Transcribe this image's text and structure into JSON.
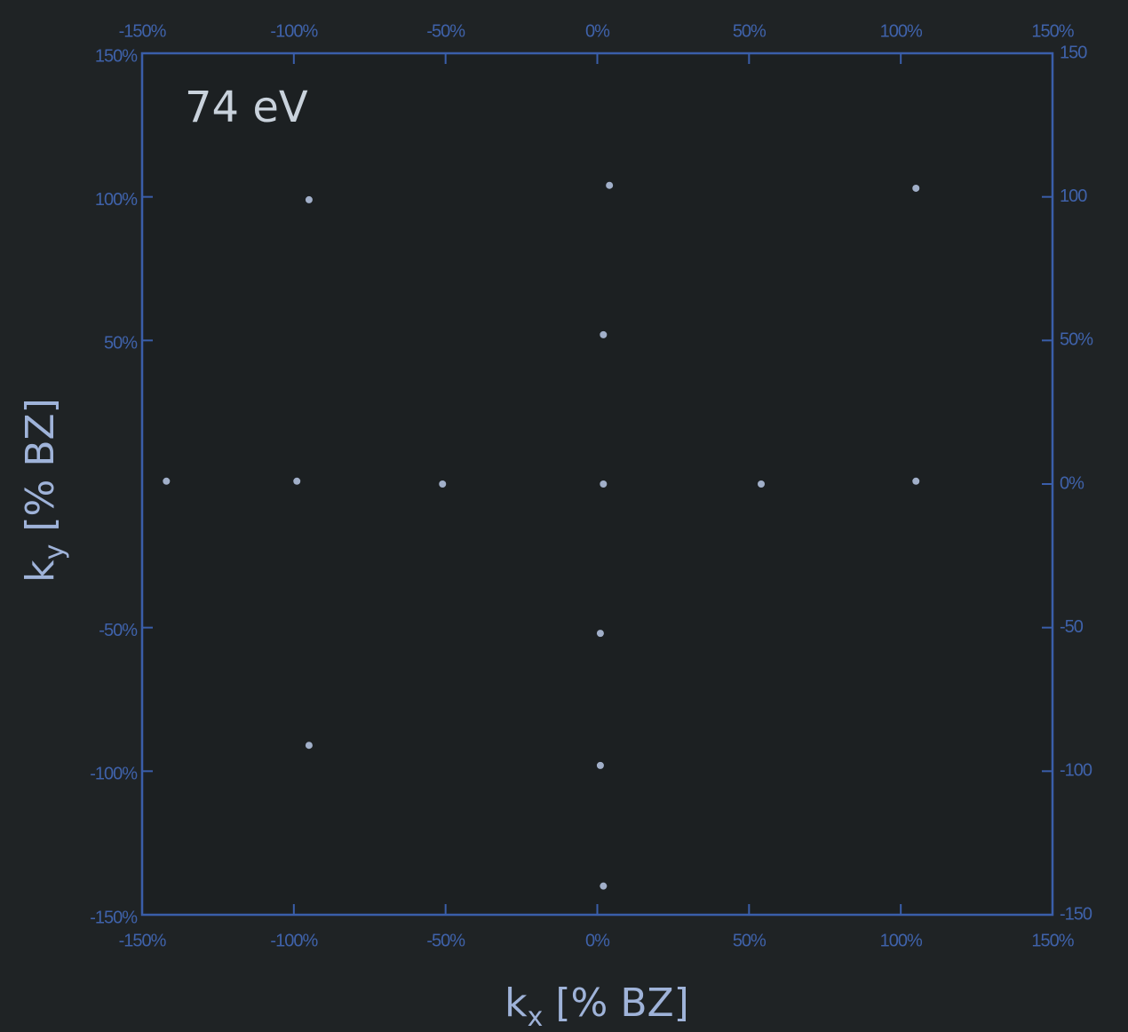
{
  "chart_data": {
    "type": "scatter",
    "annotation": "74 eV",
    "x_label": {
      "symbol": "k",
      "subscript": "x",
      "unit": "[% BZ]"
    },
    "y_label": {
      "symbol": "k",
      "subscript": "y",
      "unit": "[% BZ]"
    },
    "xlim": [
      -150,
      150
    ],
    "ylim": [
      -150,
      150
    ],
    "xticks": [
      {
        "value": -150,
        "label": "-150%"
      },
      {
        "value": -100,
        "label": "-100%"
      },
      {
        "value": -50,
        "label": "-50%"
      },
      {
        "value": 0,
        "label": "0%"
      },
      {
        "value": 50,
        "label": "50%"
      },
      {
        "value": 100,
        "label": "100%"
      },
      {
        "value": 150,
        "label": "150%"
      }
    ],
    "x2ticks": [
      {
        "value": -150,
        "label": "-150%"
      },
      {
        "value": -100,
        "label": "-100%"
      },
      {
        "value": -50,
        "label": "-50%"
      },
      {
        "value": 0,
        "label": "0%"
      },
      {
        "value": 50,
        "label": "50%"
      },
      {
        "value": 100,
        "label": "100%"
      },
      {
        "value": 150,
        "label": "150%"
      }
    ],
    "yticks": [
      {
        "value": 150,
        "label": "150%"
      },
      {
        "value": 100,
        "label": "100%"
      },
      {
        "value": 50,
        "label": "50%"
      },
      {
        "value": -50,
        "label": "-50%"
      },
      {
        "value": -100,
        "label": "-100%"
      },
      {
        "value": -150,
        "label": "-150%"
      }
    ],
    "y2ticks": [
      150,
      100,
      {
        "value": 50,
        "label": "50%"
      },
      {
        "value": 0,
        "label": "0%"
      },
      -50,
      -100,
      -150
    ],
    "color": "#b9c9e6",
    "x": [
      4,
      -95,
      105,
      2,
      -142,
      -99,
      -51,
      2,
      54,
      105,
      1,
      -95,
      1,
      2
    ],
    "y": [
      104,
      99,
      103,
      52,
      1,
      1,
      0,
      0,
      0,
      1,
      -52,
      -91,
      -98,
      -140
    ]
  }
}
